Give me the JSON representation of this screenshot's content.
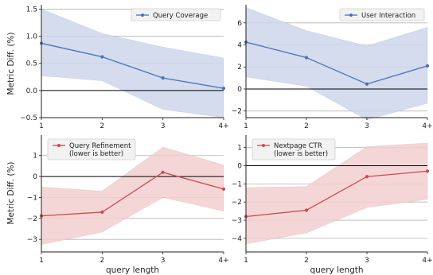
{
  "colors": {
    "blue_line": "#4a72b8",
    "blue_band": "#cdd6eb",
    "red_line": "#cc4a4f",
    "red_band": "#f2cfd0",
    "grid": "#b4b4b4",
    "zero_line": "#000000"
  },
  "chart_data": [
    {
      "type": "line",
      "x": [
        "1",
        "2",
        "3",
        "4+"
      ],
      "series": [
        {
          "name": "Query Coverage",
          "values": [
            0.87,
            0.62,
            0.23,
            0.04
          ],
          "ci_lower": [
            0.27,
            0.18,
            -0.35,
            -0.5
          ],
          "ci_upper": [
            1.5,
            1.05,
            0.8,
            0.6
          ]
        }
      ],
      "xlabel": "",
      "ylabel": "Metric Diff. (%)",
      "ylim": [
        -0.5,
        1.55
      ],
      "yticks": [
        -0.5,
        0.0,
        0.5,
        1.0,
        1.5
      ],
      "ytick_labels": [
        "−0.5",
        "0.0",
        "0.5",
        "1.0",
        "1.5"
      ],
      "grid": true,
      "legend": "top-right"
    },
    {
      "type": "line",
      "x": [
        "1",
        "2",
        "3",
        "4+"
      ],
      "series": [
        {
          "name": "User Interaction",
          "values": [
            4.25,
            2.85,
            0.45,
            2.1
          ],
          "ci_lower": [
            1.1,
            0.25,
            -2.8,
            -1.3
          ],
          "ci_upper": [
            7.4,
            5.3,
            3.9,
            5.6
          ]
        }
      ],
      "xlabel": "",
      "ylabel": "",
      "ylim": [
        -2.6,
        7.5
      ],
      "yticks": [
        -2,
        0,
        2,
        4,
        6
      ],
      "ytick_labels": [
        "−2",
        "0",
        "2",
        "4",
        "6"
      ],
      "grid": true,
      "legend": "top-right"
    },
    {
      "type": "line",
      "x": [
        "1",
        "2",
        "3",
        "4+"
      ],
      "series": [
        {
          "name": "Query Refinement\n(lower is better)",
          "values": [
            -1.88,
            -1.7,
            0.2,
            -0.6
          ],
          "ci_lower": [
            -3.25,
            -2.65,
            -1.0,
            -1.65
          ],
          "ci_upper": [
            -0.5,
            -0.7,
            1.4,
            0.55
          ]
        }
      ],
      "xlabel": "query length",
      "ylabel": "Metric Diff. (%)",
      "ylim": [
        -3.6,
        1.9
      ],
      "yticks": [
        -3,
        -2,
        -1,
        0,
        1
      ],
      "ytick_labels": [
        "−3",
        "−2",
        "−1",
        "0",
        "1"
      ],
      "grid": true,
      "legend": "top-left"
    },
    {
      "type": "line",
      "x": [
        "1",
        "2",
        "3",
        "4+"
      ],
      "series": [
        {
          "name": "Nextpage CTR\n(lower is better)",
          "values": [
            -2.8,
            -2.45,
            -0.6,
            -0.3
          ],
          "ci_lower": [
            -4.3,
            -3.7,
            -2.3,
            -1.85
          ],
          "ci_upper": [
            -1.2,
            -1.15,
            1.05,
            1.25
          ]
        }
      ],
      "xlabel": "query length",
      "ylabel": "",
      "ylim": [
        -4.75,
        1.6
      ],
      "yticks": [
        -4,
        -3,
        -2,
        -1,
        0,
        1
      ],
      "ytick_labels": [
        "−4",
        "−3",
        "−2",
        "−1",
        "0",
        "1"
      ],
      "grid": true,
      "legend": "top-left"
    }
  ]
}
